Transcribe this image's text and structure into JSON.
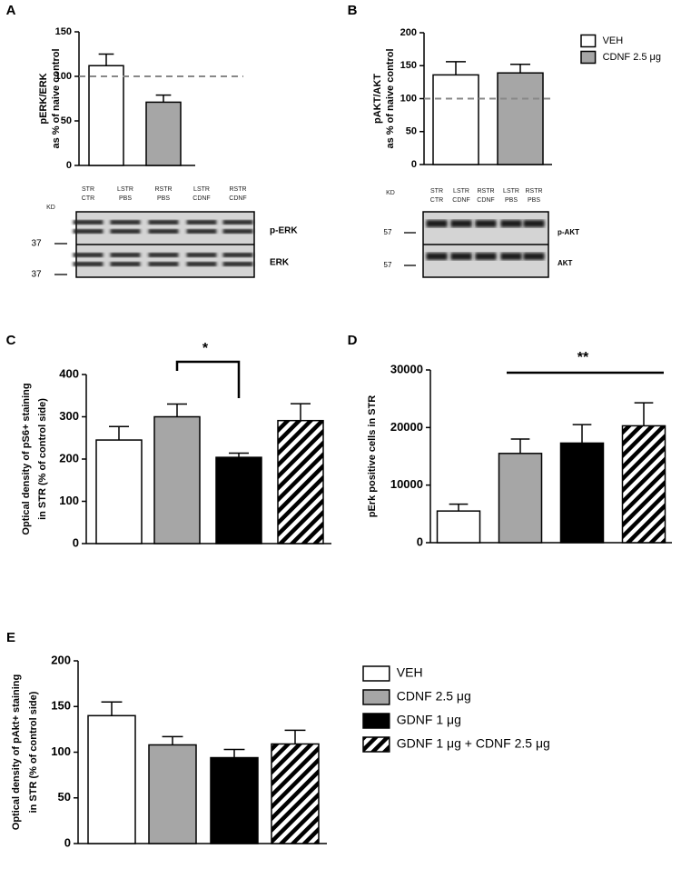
{
  "panel_labels": [
    "A",
    "B",
    "C",
    "D",
    "E"
  ],
  "chart_data": [
    {
      "type": "bar",
      "ylabel": [
        "pERK/ERK",
        "as % of naive control"
      ],
      "categories": [
        null,
        null
      ],
      "values": [
        112,
        71
      ],
      "errors": [
        13,
        8
      ],
      "fills": [
        "#ffffff",
        "#a6a6a6"
      ],
      "ylim": [
        0,
        150
      ],
      "yticks": [
        0,
        50,
        100,
        150
      ],
      "hline": 100
    },
    {
      "type": "bar",
      "ylabel": [
        "pAKT/AKT",
        "as % of naive control"
      ],
      "categories": [
        null,
        null
      ],
      "values": [
        136,
        139
      ],
      "errors": [
        20,
        13
      ],
      "fills": [
        "#ffffff",
        "#a6a6a6"
      ],
      "ylim": [
        0,
        200
      ],
      "yticks": [
        0,
        50,
        100,
        150,
        200
      ],
      "hline": 100,
      "legend": {
        "position": "right",
        "entries": [
          {
            "name": "VEH",
            "color": "#ffffff"
          },
          {
            "name": "CDNF 2.5 μg",
            "color": "#a6a6a6"
          }
        ]
      }
    },
    {
      "type": "bar",
      "ylabel": [
        "Optical density of pS6+ staining",
        "in STR (% of control side)"
      ],
      "categories": [
        null,
        null,
        null,
        null
      ],
      "values": [
        245,
        300,
        204,
        291
      ],
      "errors": [
        32,
        30,
        10,
        40
      ],
      "fills": [
        "#ffffff",
        "#a6a6a6",
        "#000000",
        "hatch"
      ],
      "ylim": [
        0,
        400
      ],
      "yticks": [
        0,
        100,
        200,
        300,
        400
      ],
      "annotation": "*"
    },
    {
      "type": "bar",
      "ylabel": [
        "pErk positive cells in STR"
      ],
      "categories": [
        null,
        null,
        null,
        null
      ],
      "values": [
        5500,
        15500,
        17300,
        20300
      ],
      "errors": [
        1200,
        2500,
        3200,
        4000
      ],
      "fills": [
        "#ffffff",
        "#a6a6a6",
        "#000000",
        "hatch"
      ],
      "ylim": [
        0,
        30000
      ],
      "yticks": [
        0,
        10000,
        20000,
        30000
      ],
      "annotation": "**"
    },
    {
      "type": "bar",
      "ylabel": [
        "Optical density of pAkt+ staining",
        "in STR (% of control side)"
      ],
      "categories": [
        null,
        null,
        null,
        null
      ],
      "values": [
        140,
        108,
        94,
        109
      ],
      "errors": [
        15,
        9,
        9,
        15
      ],
      "fills": [
        "#ffffff",
        "#a6a6a6",
        "#000000",
        "hatch"
      ],
      "ylim": [
        0,
        200
      ],
      "yticks": [
        0,
        50,
        100,
        150,
        200
      ],
      "legend": {
        "position": "right",
        "entries": [
          {
            "name": "VEH",
            "color": "#ffffff"
          },
          {
            "name": "CDNF 2.5 μg",
            "color": "#a6a6a6"
          },
          {
            "name": "GDNF 1 μg",
            "color": "#000000"
          },
          {
            "name": "GDNF 1 μg + CDNF 2.5 μg",
            "color": "hatch"
          }
        ]
      }
    }
  ],
  "blots": [
    {
      "kd_label": "KD",
      "lanes": [
        [
          "STR",
          "CTR"
        ],
        [
          "LSTR",
          "PBS"
        ],
        [
          "RSTR",
          "PBS"
        ],
        [
          "LSTR",
          "CDNF"
        ],
        [
          "RSTR",
          "CDNF"
        ]
      ],
      "rows": [
        {
          "label": "p-ERK",
          "marker": "37"
        },
        {
          "label": "ERK",
          "marker": "37"
        }
      ]
    },
    {
      "kd_label": "KD",
      "lanes": [
        [
          "STR",
          "CTR"
        ],
        [
          "LSTR",
          "CDNF"
        ],
        [
          "RSTR",
          "CDNF"
        ],
        [
          "LSTR",
          "PBS"
        ],
        [
          "RSTR",
          "PBS"
        ]
      ],
      "rows": [
        {
          "label": "p-AKT",
          "marker": "57"
        },
        {
          "label": "AKT",
          "marker": "57"
        }
      ]
    }
  ]
}
